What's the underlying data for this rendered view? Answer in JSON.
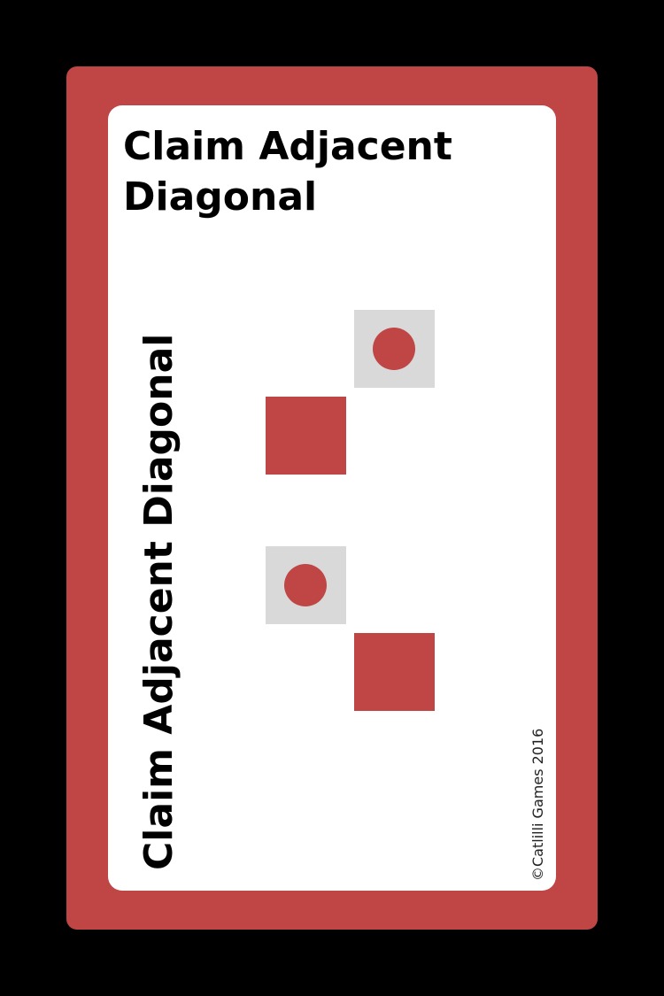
{
  "card": {
    "title": "Claim Adjacent Diagonal",
    "side_title": "Claim Adjacent Diagonal",
    "copyright": "©Catlilli Games 2016"
  },
  "colors": {
    "background": "#000000",
    "card_border": "#c04646",
    "panel": "#ffffff",
    "claimed_tile": "#c04646",
    "target_tile": "#d9d9d9",
    "marker": "#c04646"
  },
  "diagrams": [
    {
      "name": "diagonal-up-right",
      "tiles": [
        {
          "kind": "target",
          "marker": "circle"
        },
        {
          "kind": "claimed"
        }
      ]
    },
    {
      "name": "diagonal-down-right",
      "tiles": [
        {
          "kind": "target",
          "marker": "circle"
        },
        {
          "kind": "claimed"
        }
      ]
    }
  ]
}
